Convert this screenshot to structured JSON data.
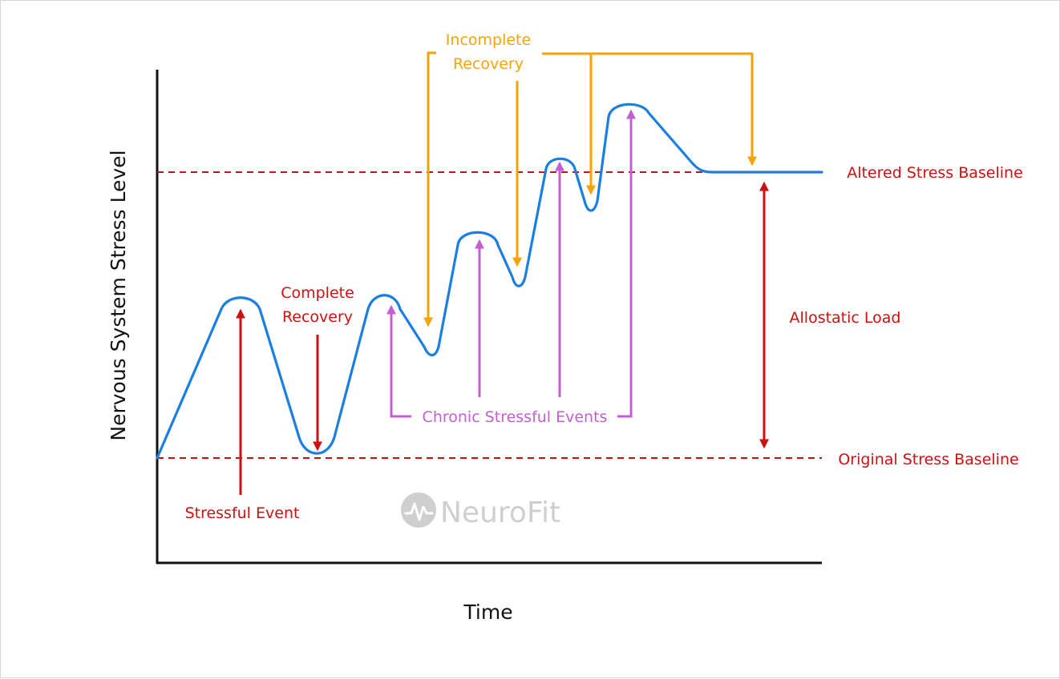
{
  "colors": {
    "curve": "#1a7fe0",
    "red": "#cc1111",
    "orange": "#f5a30a",
    "purple": "#c45fd0",
    "axis": "#111111",
    "watermark": "#cfcfcf"
  },
  "axes": {
    "y_title": "Nervous System Stress Level",
    "x_title": "Time"
  },
  "baselines": {
    "altered": "Altered Stress Baseline",
    "original": "Original Stress Baseline"
  },
  "labels": {
    "stressful_event": "Stressful Event",
    "complete_recovery": [
      "Complete",
      "Recovery"
    ],
    "incomplete_recovery": [
      "Incomplete",
      "Recovery"
    ],
    "chronic_events": "Chronic Stressful Events",
    "allostatic_load": "Allostatic Load"
  },
  "watermark": {
    "brand": "NeuroFit",
    "logo_icon": "pulse-circle-icon"
  }
}
